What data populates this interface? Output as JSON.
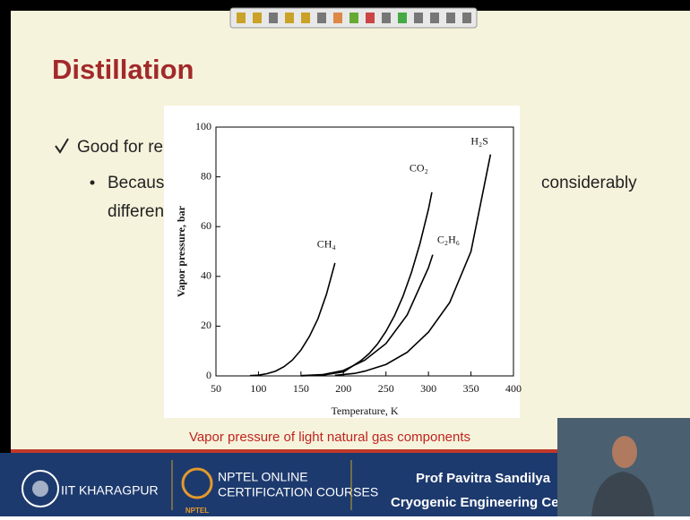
{
  "slide": {
    "title": "Distillation",
    "bullet": "Good for re",
    "sub_bullet": [
      "Because",
      "considerably",
      "different"
    ],
    "caption": "Vapor pressure of light natural gas components"
  },
  "footer": {
    "institute": "IIT KHARAGPUR",
    "course": [
      "NPTEL ONLINE",
      "CERTIFICATION COURSES"
    ],
    "logo_text": "NPTEL",
    "presenter": [
      "Prof Pavitra  Sandilya",
      "Cryogenic Engineering Cen"
    ]
  },
  "chart_data": {
    "type": "line",
    "x_label": "Temperature, K",
    "y_label": "Vapor pressure, bar",
    "xlim": [
      50,
      400
    ],
    "xticks": [
      50,
      100,
      150,
      200,
      250,
      300,
      350,
      400
    ],
    "ylim": [
      0,
      100
    ],
    "yticks": [
      0,
      20,
      40,
      60,
      80,
      100
    ],
    "series": [
      {
        "name": "CH₄",
        "color": "#000000",
        "x": [
          90,
          100,
          110,
          120,
          130,
          140,
          150,
          160,
          170,
          180,
          190
        ],
        "values": [
          0.1,
          0.3,
          0.9,
          1.9,
          3.7,
          6.4,
          10.4,
          15.9,
          23,
          32.8,
          45.4
        ]
      },
      {
        "name": "CO₂",
        "color": "#000000",
        "x": [
          150,
          175,
          200,
          220,
          230,
          240,
          250,
          260,
          270,
          280,
          290,
          300,
          304
        ],
        "values": [
          0,
          0.3,
          1.6,
          6,
          8.9,
          12.8,
          17.9,
          24.2,
          32,
          41.6,
          53.2,
          67,
          73.8
        ]
      },
      {
        "name": "C₂H₆",
        "color": "#000000",
        "x": [
          150,
          175,
          200,
          225,
          250,
          275,
          300,
          305
        ],
        "values": [
          0.1,
          0.5,
          2.2,
          6.3,
          13,
          24.5,
          43.5,
          48.7
        ]
      },
      {
        "name": "H₂S",
        "color": "#000000",
        "x": [
          190,
          213,
          225,
          250,
          275,
          300,
          325,
          350,
          373
        ],
        "values": [
          0.2,
          1,
          1.9,
          4.6,
          9.5,
          17.6,
          29.5,
          50,
          89
        ]
      }
    ]
  }
}
